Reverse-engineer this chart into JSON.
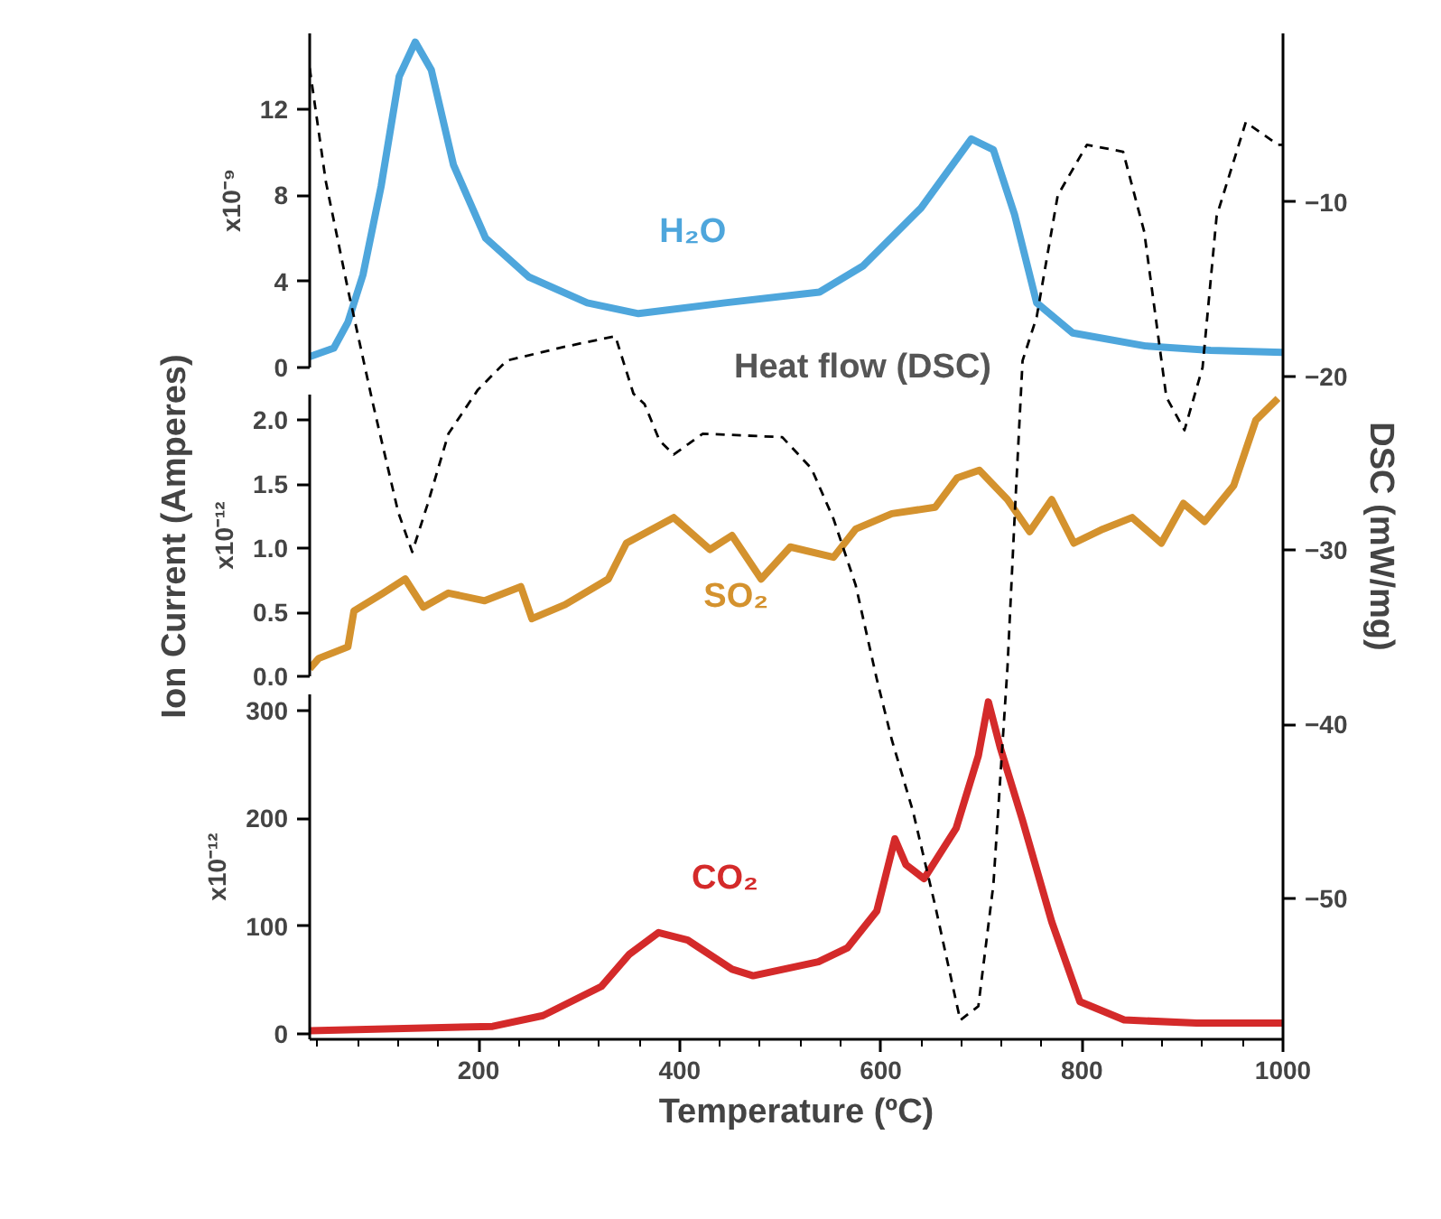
{
  "chart_data": [
    {
      "type": "line",
      "ylabel": "x10⁻⁹",
      "xlim": [
        32,
        1000
      ],
      "ylim": [
        0,
        15.5
      ],
      "yticks": [
        0,
        4,
        8,
        12
      ],
      "tick_labels": "y",
      "series": [
        {
          "name": "H₂O",
          "color": "#4ea6dc",
          "x": [
            32,
            56,
            70,
            85,
            103,
            121,
            137,
            153,
            175,
            207,
            250,
            308,
            359,
            445,
            539,
            582,
            640,
            690,
            712,
            733,
            755,
            791,
            863,
            928,
            1000
          ],
          "values": [
            0.5,
            0.9,
            2.1,
            4.3,
            8.4,
            13.5,
            15.1,
            13.8,
            9.4,
            6.0,
            4.2,
            3.0,
            2.5,
            3.0,
            3.5,
            4.7,
            7.4,
            10.6,
            10.1,
            7.1,
            3.0,
            1.6,
            1.0,
            0.8,
            0.7
          ]
        }
      ]
    },
    {
      "type": "line",
      "ylabel": "x10⁻¹²",
      "xlim": [
        32,
        1000
      ],
      "ylim": [
        0,
        2.2
      ],
      "yticks": [
        {
          "value": 0,
          "label": "0.0"
        },
        0.5,
        {
          "value": 1,
          "label": "1.0"
        },
        1.5,
        {
          "value": 2,
          "label": "2.0"
        }
      ],
      "tick_labels": "y",
      "series": [
        {
          "name": "SO₂",
          "color": "#d4922e",
          "x": [
            32,
            41,
            70,
            76,
            105,
            127,
            145,
            170,
            206,
            242,
            253,
            286,
            329,
            347,
            394,
            430,
            452,
            481,
            510,
            553,
            575,
            611,
            654,
            676,
            698,
            726,
            748,
            770,
            792,
            821,
            850,
            879,
            901,
            922,
            951,
            973,
            995
          ],
          "values": [
            0.06,
            0.14,
            0.23,
            0.51,
            0.65,
            0.76,
            0.54,
            0.65,
            0.59,
            0.7,
            0.45,
            0.56,
            0.76,
            1.04,
            1.24,
            0.99,
            1.1,
            0.76,
            1.01,
            0.93,
            1.15,
            1.27,
            1.32,
            1.55,
            1.61,
            1.38,
            1.13,
            1.38,
            1.04,
            1.15,
            1.24,
            1.04,
            1.35,
            1.21,
            1.49,
            2.0,
            2.17
          ]
        }
      ]
    },
    {
      "type": "line",
      "ylabel": "x10⁻¹²",
      "xlabel": "Temperature (ºC)",
      "xlim": [
        32,
        1000
      ],
      "xticks": [
        200,
        400,
        600,
        800,
        1000
      ],
      "ylim": [
        -5,
        315
      ],
      "yticks": [
        0,
        100,
        200,
        300
      ],
      "series": [
        {
          "name": "CO₂",
          "color": "#d42a2a",
          "x": [
            32,
            214,
            264,
            322,
            350,
            379,
            408,
            452,
            473,
            538,
            567,
            596,
            614,
            625,
            643,
            675,
            697,
            707,
            719,
            741,
            770,
            798,
            842,
            914,
            1000
          ],
          "values": [
            3,
            7,
            17,
            44,
            74,
            94,
            87,
            60,
            54,
            67,
            80,
            114,
            181,
            157,
            144,
            191,
            258,
            308,
            265,
            198,
            104,
            30,
            13,
            10,
            10
          ]
        }
      ]
    },
    {
      "type": "line",
      "ylabel": "DSC (mW/mg)",
      "annotations": [
        "Ion Current (Amperes)"
      ],
      "xlim": [
        32,
        1000
      ],
      "ylim": [
        -58.1,
        -0.3
      ],
      "yticks": [
        -10,
        -20,
        -30,
        -40,
        -50
      ],
      "tick_labels": "y",
      "line_style": "dashed",
      "series": [
        {
          "name": "Heat flow (DSC)",
          "color": "#000000",
          "x": [
            32,
            48,
            70,
            95,
            120,
            134,
            149,
            170,
            199,
            228,
            286,
            336,
            354,
            365,
            380,
            394,
            423,
            502,
            531,
            553,
            575,
            596,
            611,
            632,
            654,
            679,
            697,
            712,
            726,
            733,
            741,
            755,
            776,
            805,
            841,
            862,
            884,
            902,
            920,
            934,
            963,
            995,
            1000
          ],
          "values": [
            -2.3,
            -8.8,
            -15.0,
            -21.6,
            -27.8,
            -30.1,
            -27.4,
            -23.3,
            -20.8,
            -19.1,
            -18.3,
            -17.7,
            -21.0,
            -21.6,
            -23.7,
            -24.5,
            -23.3,
            -23.5,
            -25.3,
            -28.2,
            -32.0,
            -37.4,
            -40.9,
            -45.0,
            -50.4,
            -57.0,
            -56.2,
            -49.2,
            -36.7,
            -28.2,
            -19.1,
            -16.6,
            -9.6,
            -6.7,
            -7.1,
            -11.7,
            -21.2,
            -23.1,
            -19.5,
            -10.8,
            -5.4,
            -6.7,
            -6.7
          ]
        }
      ]
    }
  ]
}
